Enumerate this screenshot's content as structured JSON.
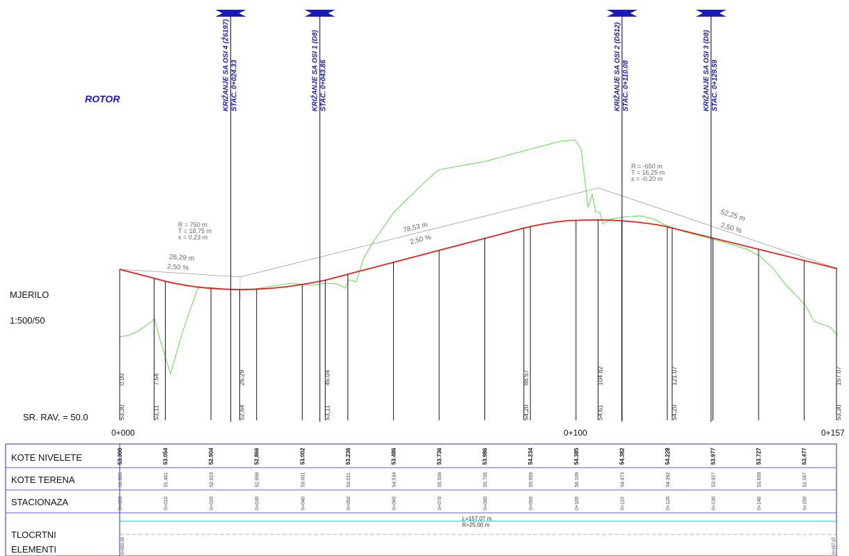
{
  "title": "ROTOR",
  "scale_label": "MJERILO",
  "scale_value": "1:500/50",
  "datum_label": "SR. RAV. = 50.0",
  "station_axis": [
    "0+000",
    "0+100",
    "0+157"
  ],
  "crossings": [
    {
      "name": "KRIŽANJE SA OSI 4 (Ž6197)",
      "stac": "STAC. 0+024.33",
      "station": 24.33
    },
    {
      "name": "KRIŽANJE SA OSI 1 (D8)",
      "stac": "STAC. 0+043.86",
      "station": 43.86
    },
    {
      "name": "KRIŽANJE SA OSI 2 (D512)",
      "stac": "STAC. 0+110.08",
      "station": 110.08
    },
    {
      "name": "KRIŽANJE SA OSI 3 (D8)",
      "stac": "STAC. 0+129.59",
      "station": 129.59
    }
  ],
  "vertical_curves": [
    {
      "R": "R = 750  m",
      "T": "T = 18,75  m",
      "s": "s = 0,23  m"
    },
    {
      "R": "R = -650  m",
      "T": "T = 16,25  m",
      "s": "s = -0,20  m"
    }
  ],
  "grades": [
    {
      "length": "26,29 m",
      "slope": "2,50 %"
    },
    {
      "length": "78,53 m",
      "slope": "2,50 %"
    },
    {
      "length": "52,25 m",
      "slope": "2,50 %"
    }
  ],
  "key_points": [
    {
      "station": "0.00",
      "elev": "53,30"
    },
    {
      "station": "7.54",
      "elev": "53,11"
    },
    {
      "station": "26.29",
      "elev": "52,64"
    },
    {
      "station": "45.04",
      "elev": "53,11"
    },
    {
      "station": "88.57",
      "elev": "54,20"
    },
    {
      "station": "104.82",
      "elev": "54,61"
    },
    {
      "station": "121.07",
      "elev": "54,20"
    },
    {
      "station": "157.07",
      "elev": "53,30"
    }
  ],
  "table": {
    "rows": [
      "KOTE NIVELETE",
      "KOTE TERENA",
      "STACIONAZA",
      "TLOCRTNI",
      "ELEMENTI"
    ],
    "kote_nivelete": [
      "53.300",
      "53.054",
      "52.904",
      "52.866",
      "53.002",
      "53.236",
      "53.486",
      "53.736",
      "53.986",
      "54.234",
      "54.385",
      "54.382",
      "54.228",
      "53.977",
      "53.727",
      "53.477"
    ],
    "kote_terena": [
      "51.865",
      "51.481",
      "52.923",
      "52.858",
      "53.001",
      "53.011",
      "54.534",
      "55.509",
      "55.705",
      "55.959",
      "56.109",
      "54.473",
      "54.292",
      "53.927",
      "53.659",
      "52.567"
    ],
    "stacionaza": [
      "0+000",
      "0+010",
      "0+020",
      "0+030",
      "0+040",
      "0+050",
      "0+060",
      "0+070",
      "0+080",
      "0+090",
      "0+100",
      "0+110",
      "0+120",
      "0+130",
      "0+140",
      "0+150"
    ],
    "tlocrtni_length": "L=157.07  m",
    "tlocrtni_radius": "R=25.00  m",
    "elementi_start": "0+000.00",
    "elementi_end": "0+157.07"
  },
  "colors": {
    "niveleta": "#e8201a",
    "teren": "#5fdc4a",
    "crossing": "#1a1ab8",
    "tlocrtni": "#00c8d8",
    "frame": "#2a2ad0"
  }
}
